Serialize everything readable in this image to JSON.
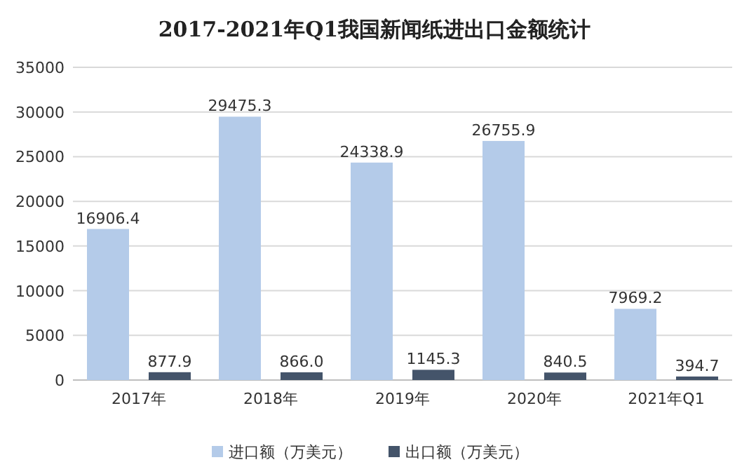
{
  "chart_data": {
    "type": "bar",
    "title": "2017-2021年Q1我国新闻纸进出口金额统计",
    "categories": [
      "2017年",
      "2018年",
      "2019年",
      "2020年",
      "2021年Q1"
    ],
    "series": [
      {
        "name": "进口额（万美元）",
        "color": "#b4cbe9",
        "values": [
          16906.4,
          29475.3,
          24338.9,
          26755.9,
          7969.2
        ]
      },
      {
        "name": "出口额（万美元）",
        "color": "#44546a",
        "values": [
          877.9,
          866.0,
          1145.3,
          840.5,
          394.7
        ]
      }
    ],
    "value_labels": [
      [
        "16906.4",
        "29475.3",
        "24338.9",
        "26755.9",
        "7969.2"
      ],
      [
        "877.9",
        "866.0",
        "1145.3",
        "840.5",
        "394.7"
      ]
    ],
    "ylim": [
      0,
      35000
    ],
    "yticks": [
      0,
      5000,
      10000,
      15000,
      20000,
      25000,
      30000,
      35000
    ],
    "grid": "y",
    "legend": "bottom"
  }
}
